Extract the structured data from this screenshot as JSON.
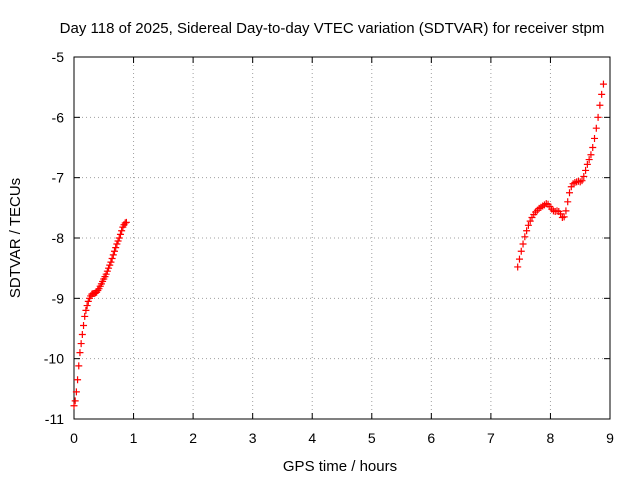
{
  "chart_data": {
    "type": "scatter",
    "title": "Day 118 of 2025, Sidereal Day-to-day VTEC variation (SDTVAR) for receiver stpm",
    "xlabel": "GPS time / hours",
    "ylabel": "SDTVAR / TECUs",
    "xlim": [
      0,
      9
    ],
    "ylim": [
      -11,
      -5
    ],
    "x_ticks": [
      "0",
      "1",
      "2",
      "3",
      "4",
      "5",
      "6",
      "7",
      "8",
      "9"
    ],
    "y_ticks": [
      "-5",
      "-6",
      "-7",
      "-8",
      "-9",
      "-10",
      "-11"
    ],
    "grid": true,
    "marker": "plus",
    "series_color": "#ff0000",
    "segments": [
      {
        "x": [
          0.0,
          0.02,
          0.04,
          0.06,
          0.08,
          0.1,
          0.12,
          0.14,
          0.16,
          0.18,
          0.2,
          0.22,
          0.24,
          0.26,
          0.28,
          0.3,
          0.32,
          0.34,
          0.36,
          0.38,
          0.4,
          0.42,
          0.44,
          0.46,
          0.48,
          0.5,
          0.52,
          0.54,
          0.56,
          0.58,
          0.6,
          0.62,
          0.64,
          0.66,
          0.68,
          0.7,
          0.72,
          0.74,
          0.76,
          0.78,
          0.8,
          0.82,
          0.84,
          0.86,
          0.88
        ],
        "y": [
          -10.78,
          -10.7,
          -10.55,
          -10.35,
          -10.12,
          -9.9,
          -9.75,
          -9.6,
          -9.45,
          -9.3,
          -9.2,
          -9.12,
          -9.05,
          -9.0,
          -8.96,
          -8.93,
          -8.92,
          -8.92,
          -8.91,
          -8.9,
          -8.87,
          -8.84,
          -8.8,
          -8.76,
          -8.72,
          -8.68,
          -8.64,
          -8.6,
          -8.55,
          -8.5,
          -8.45,
          -8.4,
          -8.34,
          -8.28,
          -8.22,
          -8.16,
          -8.1,
          -8.05,
          -8.0,
          -7.94,
          -7.88,
          -7.82,
          -7.78,
          -7.75,
          -7.74
        ]
      },
      {
        "x": [
          7.45,
          7.48,
          7.51,
          7.54,
          7.57,
          7.6,
          7.63,
          7.66,
          7.69,
          7.72,
          7.75,
          7.78,
          7.81,
          7.84,
          7.87,
          7.9,
          7.93,
          7.96,
          7.99,
          8.02,
          8.05,
          8.08,
          8.11,
          8.14,
          8.17,
          8.2,
          8.23,
          8.26,
          8.29,
          8.32,
          8.35,
          8.38,
          8.41,
          8.44,
          8.47,
          8.5,
          8.53,
          8.56,
          8.59,
          8.62,
          8.65,
          8.68,
          8.71,
          8.74,
          8.77,
          8.8,
          8.83,
          8.86,
          8.89
        ],
        "y": [
          -8.48,
          -8.35,
          -8.22,
          -8.1,
          -7.98,
          -7.88,
          -7.79,
          -7.72,
          -7.66,
          -7.61,
          -7.57,
          -7.54,
          -7.51,
          -7.49,
          -7.47,
          -7.45,
          -7.43,
          -7.44,
          -7.48,
          -7.52,
          -7.55,
          -7.56,
          -7.55,
          -7.56,
          -7.6,
          -7.66,
          -7.65,
          -7.55,
          -7.4,
          -7.25,
          -7.15,
          -7.1,
          -7.08,
          -7.07,
          -7.06,
          -7.07,
          -7.05,
          -6.98,
          -6.88,
          -6.78,
          -6.7,
          -6.62,
          -6.5,
          -6.35,
          -6.18,
          -6.0,
          -5.8,
          -5.62,
          -5.45
        ]
      }
    ]
  }
}
